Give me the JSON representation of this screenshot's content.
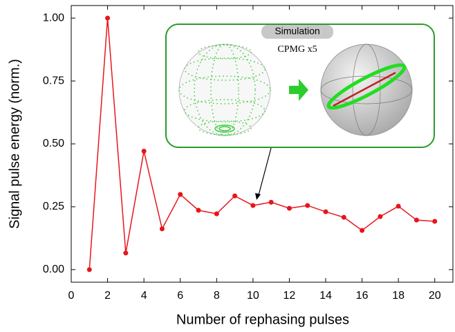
{
  "chart_data": {
    "type": "line",
    "x_label": "Number of rephasing pulses",
    "y_label": "Signal pulse energy (norm.)",
    "x": [
      1,
      2,
      3,
      4,
      5,
      6,
      7,
      8,
      9,
      10,
      11,
      12,
      13,
      14,
      15,
      16,
      17,
      18,
      19,
      20
    ],
    "values": [
      0.0,
      1.0,
      0.066,
      0.471,
      0.162,
      0.299,
      0.236,
      0.222,
      0.293,
      0.255,
      0.268,
      0.244,
      0.255,
      0.23,
      0.208,
      0.156,
      0.211,
      0.252,
      0.197,
      0.192
    ],
    "color": "#e8141c",
    "xlim": [
      0,
      21
    ],
    "xticks": [
      0,
      2,
      4,
      6,
      8,
      10,
      12,
      14,
      16,
      18,
      20
    ],
    "ylim": [
      -0.05,
      1.05
    ],
    "yticks": [
      {
        "value": 0,
        "label": "0.00"
      },
      {
        "value": 0.25,
        "label": "0.25"
      },
      {
        "value": 0.5,
        "label": "0.50"
      },
      {
        "value": 0.75,
        "label": "0.75"
      },
      {
        "value": 1,
        "label": "1.00"
      }
    ],
    "inset_tag": "Simulation",
    "inset_caption": "CPMG x5"
  }
}
